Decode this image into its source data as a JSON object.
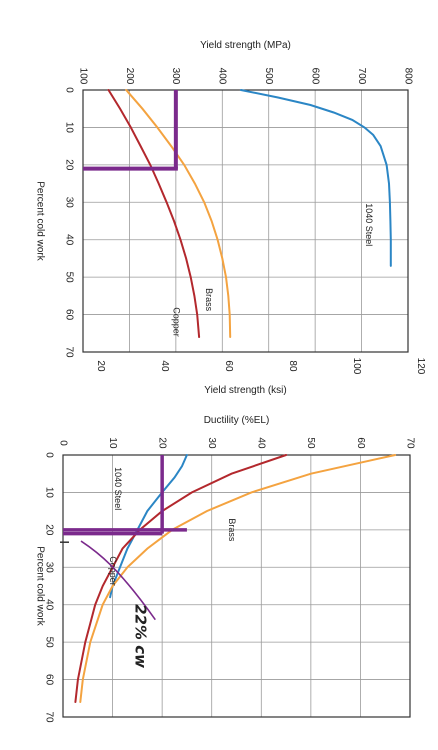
{
  "colors": {
    "steel": "#2b86c5",
    "brass": "#f4a340",
    "copper": "#b3282d",
    "annotation": "#7b2a8c",
    "grid": "#9a9a9a",
    "frame": "#333333"
  },
  "chart_data": [
    {
      "type": "line",
      "orientation": "rotated-90",
      "title": "",
      "xlabel": "Percent cold work",
      "ylabel_top": "Yield strength (MPa)",
      "ylabel_bottom": "Yield strength (ksi)",
      "xlim": [
        0,
        70
      ],
      "ylim_mpa": [
        100,
        800
      ],
      "ylim_ksi": [
        14,
        126
      ],
      "x_ticks": [
        "0",
        "10",
        "20",
        "30",
        "40",
        "50",
        "60",
        "70"
      ],
      "mpa_ticks": [
        "100",
        "200",
        "300",
        "400",
        "500",
        "600",
        "700",
        "800"
      ],
      "ksi_ticks": [
        "20",
        "40",
        "60",
        "80",
        "100",
        "120"
      ],
      "series": [
        {
          "name": "1040 Steel",
          "color_key": "steel",
          "x": [
            0,
            2,
            4,
            6,
            8,
            10,
            12,
            15,
            20,
            25,
            30,
            35,
            40,
            47
          ],
          "y": [
            440,
            520,
            590,
            640,
            680,
            706,
            725,
            741,
            754,
            759,
            761,
            762,
            763,
            763
          ]
        },
        {
          "name": "Brass",
          "color_key": "brass",
          "x": [
            0,
            5,
            10,
            15,
            20,
            25,
            30,
            35,
            40,
            45,
            50,
            55,
            60,
            66
          ],
          "y": [
            193,
            228,
            260,
            290,
            318,
            341,
            361,
            377,
            390,
            400,
            408,
            413,
            416,
            417
          ]
        },
        {
          "name": "Copper",
          "color_key": "copper",
          "x": [
            0,
            5,
            10,
            15,
            20,
            25,
            30,
            35,
            40,
            45,
            50,
            55,
            60,
            66
          ],
          "y": [
            155,
            180,
            203,
            224,
            245,
            263,
            280,
            296,
            310,
            322,
            332,
            340,
            346,
            350
          ]
        }
      ],
      "annotations": [
        {
          "kind": "marker-line",
          "axis": "y",
          "value": 300,
          "from_x": 0,
          "to_x": 21
        },
        {
          "kind": "marker-line",
          "axis": "x",
          "value": 21,
          "from_y": 100,
          "to_y": 300
        }
      ]
    },
    {
      "type": "line",
      "orientation": "rotated-90",
      "title": "",
      "xlabel": "Percent cold work",
      "ylabel": "Ductility (%EL)",
      "xlim": [
        0,
        70
      ],
      "ylim": [
        0,
        70
      ],
      "x_ticks": [
        "0",
        "10",
        "20",
        "30",
        "40",
        "50",
        "60",
        "70"
      ],
      "y_ticks": [
        "0",
        "10",
        "20",
        "30",
        "40",
        "50",
        "60",
        "70"
      ],
      "series": [
        {
          "name": "1040 Steel",
          "color_key": "steel",
          "x": [
            0,
            3,
            6,
            10,
            15,
            20,
            25,
            30,
            35,
            38
          ],
          "y": [
            25,
            24,
            22.5,
            20,
            17,
            15,
            13,
            11.5,
            10,
            9.5
          ]
        },
        {
          "name": "Brass",
          "color_key": "brass",
          "x": [
            0,
            5,
            10,
            15,
            20,
            25,
            30,
            35,
            40,
            50,
            60,
            66
          ],
          "y": [
            67,
            50,
            38,
            29,
            22,
            17,
            13,
            10,
            8,
            5.5,
            4,
            3.5
          ]
        },
        {
          "name": "Copper",
          "color_key": "copper",
          "x": [
            0,
            5,
            10,
            15,
            20,
            25,
            30,
            35,
            40,
            45,
            50,
            60,
            66
          ],
          "y": [
            45,
            34,
            26,
            20,
            15.5,
            12,
            10,
            8,
            6.5,
            5.5,
            4.5,
            3,
            2.5
          ]
        }
      ],
      "annotations": [
        {
          "kind": "marker-line",
          "axis": "y",
          "value": 20,
          "from_x": 0,
          "to_x": 21
        },
        {
          "kind": "marker-line",
          "axis": "x",
          "value": 20,
          "from_y": 0,
          "to_y": 25
        },
        {
          "kind": "marker-line",
          "axis": "x",
          "value": 21,
          "from_y": 0,
          "to_y": 20
        },
        {
          "kind": "handwritten",
          "text": "22% cw",
          "x": 45,
          "y": 5
        }
      ]
    }
  ]
}
